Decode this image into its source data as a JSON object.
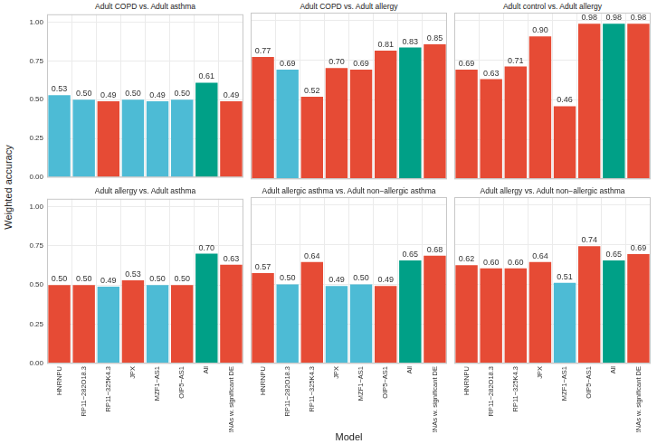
{
  "chart_data": {
    "type": "bar",
    "xlabel": "Model",
    "ylabel": "Weighted accuracy",
    "categories": [
      "HNRNPU",
      "RP11−282O18.3",
      "RP11−325K4.3",
      "JPX",
      "MZF1−AS1",
      "OIP5−AS1",
      "All",
      "LncRNAs w. significant DE"
    ],
    "ylim": [
      0,
      1.05
    ],
    "yticks": [
      {
        "value": 0,
        "label": "0.00"
      },
      0.25,
      {
        "value": 0.5,
        "label": "0.50"
      },
      0.75,
      {
        "value": 1,
        "label": "1.00"
      }
    ],
    "grid": true,
    "data_labels": true,
    "legend": false,
    "panels": [
      {
        "title": "Adult COPD vs. Adult asthma",
        "values": [
          0.53,
          0.5,
          0.49,
          0.5,
          0.49,
          0.5,
          0.61,
          0.49
        ],
        "value_labels": [
          "0.53",
          "0.50",
          "0.49",
          "0.50",
          "0.49",
          "0.50",
          "0.61",
          "0.49"
        ],
        "colors": [
          "#4DBBD5",
          "#4DBBD5",
          "#E64B35",
          "#4DBBD5",
          "#4DBBD5",
          "#4DBBD5",
          "#00A087",
          "#E64B35"
        ]
      },
      {
        "title": "Adult COPD vs. Adult allergy",
        "values": [
          0.77,
          0.69,
          0.52,
          0.7,
          0.69,
          0.81,
          0.83,
          0.85
        ],
        "value_labels": [
          "0.77",
          "0.69",
          "0.52",
          "0.70",
          "0.69",
          "0.81",
          "0.83",
          "0.85"
        ],
        "colors": [
          "#E64B35",
          "#4DBBD5",
          "#E64B35",
          "#E64B35",
          "#E64B35",
          "#E64B35",
          "#00A087",
          "#E64B35"
        ]
      },
      {
        "title": "Adult control vs. Adult allergy",
        "values": [
          0.69,
          0.63,
          0.71,
          0.9,
          0.46,
          0.98,
          0.98,
          0.98
        ],
        "value_labels": [
          "0.69",
          "0.63",
          "0.71",
          "0.90",
          "0.46",
          "0.98",
          "0.98",
          "0.98"
        ],
        "colors": [
          "#E64B35",
          "#E64B35",
          "#E64B35",
          "#E64B35",
          "#E64B35",
          "#E64B35",
          "#00A087",
          "#E64B35"
        ]
      },
      {
        "title": "Adult allergy vs. Adult asthma",
        "values": [
          0.5,
          0.5,
          0.49,
          0.53,
          0.5,
          0.5,
          0.7,
          0.63
        ],
        "value_labels": [
          "0.50",
          "0.50",
          "0.49",
          "0.53",
          "0.50",
          "0.50",
          "0.70",
          "0.63"
        ],
        "colors": [
          "#E64B35",
          "#E64B35",
          "#4DBBD5",
          "#E64B35",
          "#4DBBD5",
          "#E64B35",
          "#00A087",
          "#E64B35"
        ]
      },
      {
        "title": "Adult allergic asthma vs. Adult non−allergic asthma",
        "values": [
          0.57,
          0.5,
          0.64,
          0.49,
          0.5,
          0.49,
          0.65,
          0.68
        ],
        "value_labels": [
          "0.57",
          "0.50",
          "0.64",
          "0.49",
          "0.50",
          "0.49",
          "0.65",
          "0.68"
        ],
        "colors": [
          "#E64B35",
          "#4DBBD5",
          "#E64B35",
          "#4DBBD5",
          "#4DBBD5",
          "#E64B35",
          "#00A087",
          "#E64B35"
        ]
      },
      {
        "title": "Adult allergy vs. Adult non−allergic asthma",
        "values": [
          0.62,
          0.6,
          0.6,
          0.64,
          0.51,
          0.74,
          0.65,
          0.69
        ],
        "value_labels": [
          "0.62",
          "0.60",
          "0.60",
          "0.64",
          "0.51",
          "0.74",
          "0.65",
          "0.69"
        ],
        "colors": [
          "#E64B35",
          "#E64B35",
          "#E64B35",
          "#E64B35",
          "#4DBBD5",
          "#E64B35",
          "#00A087",
          "#E64B35"
        ]
      }
    ]
  }
}
